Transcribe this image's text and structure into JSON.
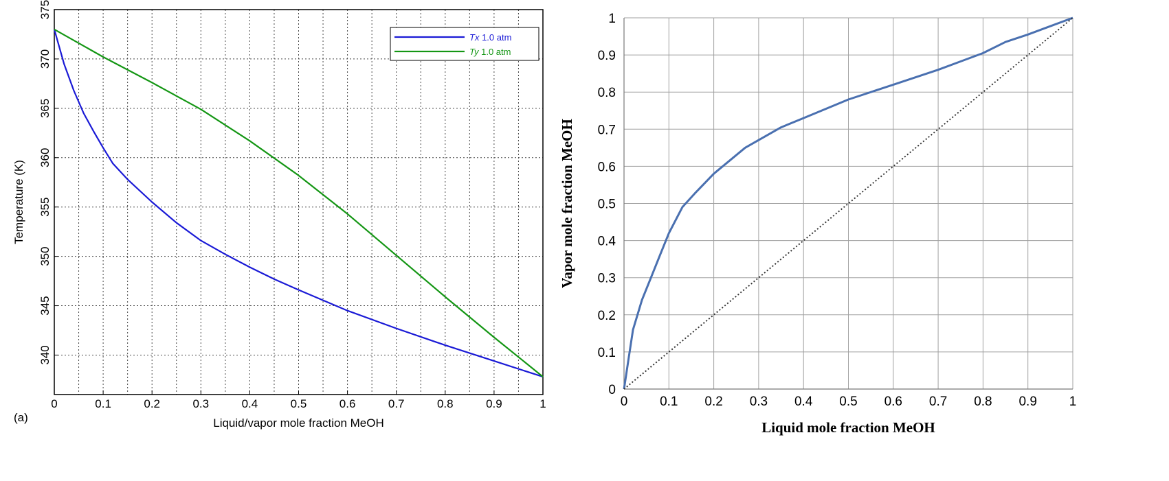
{
  "chart_data": [
    {
      "type": "line",
      "title": "",
      "panel_label": "(a)",
      "xlabel": "Liquid/vapor mole fraction MeOH",
      "ylabel": "Temperature (K)",
      "xlim": [
        0,
        1
      ],
      "ylim": [
        336,
        375
      ],
      "x_ticks": [
        "0",
        "0.1",
        "0.2",
        "0.3",
        "0.4",
        "0.5",
        "0.6",
        "0.7",
        "0.8",
        "0.9",
        "1"
      ],
      "y_ticks": [
        "340",
        "345",
        "350",
        "355",
        "360",
        "365",
        "370",
        "375"
      ],
      "grid": true,
      "legend_position": "top-right",
      "legend": [
        {
          "italic": "Tx",
          "rest": " 1.0 atm",
          "color": "#1a1ad6"
        },
        {
          "italic": "Ty",
          "rest": " 1.0 atm",
          "color": "#149614"
        }
      ],
      "series": [
        {
          "name": "Tx 1.0 atm",
          "color": "#1a1ad6",
          "x": [
            0,
            0.02,
            0.04,
            0.06,
            0.08,
            0.1,
            0.12,
            0.15,
            0.2,
            0.25,
            0.3,
            0.35,
            0.4,
            0.45,
            0.5,
            0.6,
            0.7,
            0.8,
            0.9,
            1.0
          ],
          "y": [
            373,
            369.5,
            366.8,
            364.5,
            362.7,
            361.0,
            359.4,
            357.8,
            355.5,
            353.4,
            351.6,
            350.2,
            348.9,
            347.7,
            346.6,
            344.5,
            342.7,
            341.0,
            339.4,
            337.8
          ]
        },
        {
          "name": "Ty 1.0 atm",
          "color": "#149614",
          "x": [
            0,
            0.1,
            0.2,
            0.3,
            0.4,
            0.5,
            0.6,
            0.7,
            0.8,
            0.9,
            1.0
          ],
          "y": [
            373,
            370.2,
            367.6,
            364.9,
            361.7,
            358.2,
            354.3,
            350.1,
            345.9,
            341.8,
            337.8
          ]
        }
      ]
    },
    {
      "type": "line",
      "title": "",
      "xlabel": "Liquid mole fraction MeOH",
      "ylabel": "Vapor mole fraction MeOH",
      "xlim": [
        0,
        1
      ],
      "ylim": [
        0,
        1
      ],
      "x_ticks": [
        "0",
        "0.1",
        "0.2",
        "0.3",
        "0.4",
        "0.5",
        "0.6",
        "0.7",
        "0.8",
        "0.9",
        "1"
      ],
      "y_ticks": [
        "0",
        "0.1",
        "0.2",
        "0.3",
        "0.4",
        "0.5",
        "0.6",
        "0.7",
        "0.8",
        "0.9",
        "1"
      ],
      "grid": true,
      "series": [
        {
          "color": "#4a70b0",
          "x": [
            0,
            0.01,
            0.02,
            0.03,
            0.04,
            0.06,
            0.08,
            0.1,
            0.13,
            0.16,
            0.2,
            0.27,
            0.35,
            0.4,
            0.5,
            0.6,
            0.7,
            0.8,
            0.85,
            0.9,
            1.0
          ],
          "y": [
            0,
            0.08,
            0.16,
            0.2,
            0.24,
            0.3,
            0.36,
            0.42,
            0.49,
            0.53,
            0.58,
            0.65,
            0.705,
            0.73,
            0.78,
            0.82,
            0.86,
            0.905,
            0.935,
            0.955,
            1.0
          ]
        },
        {
          "style": "dotted",
          "color": "#333333",
          "x": [
            0,
            1
          ],
          "y": [
            0,
            1
          ]
        }
      ]
    }
  ]
}
